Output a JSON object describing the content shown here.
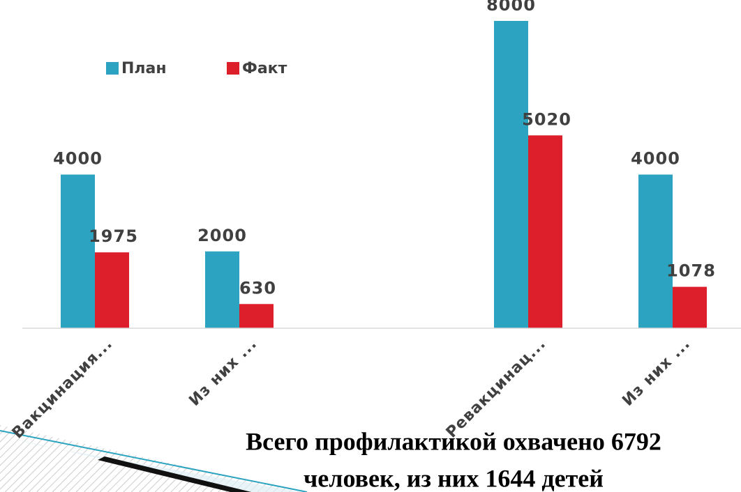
{
  "chart_data": {
    "type": "bar",
    "categories": [
      "Вакцинация...",
      "Из них ...",
      null,
      "Ревакцинац...",
      "Из них ..."
    ],
    "series": [
      {
        "name": "План",
        "color": "#2ca3c0",
        "values": [
          4000,
          2000,
          null,
          8000,
          4000
        ]
      },
      {
        "name": "Факт",
        "color": "#dc1f2a",
        "values": [
          1975,
          630,
          null,
          5020,
          1078
        ]
      }
    ],
    "ylim": [
      0,
      8000
    ],
    "annotations": [
      "Всего профилактикой охвачено 6792",
      "человек, из них 1644 детей"
    ]
  }
}
